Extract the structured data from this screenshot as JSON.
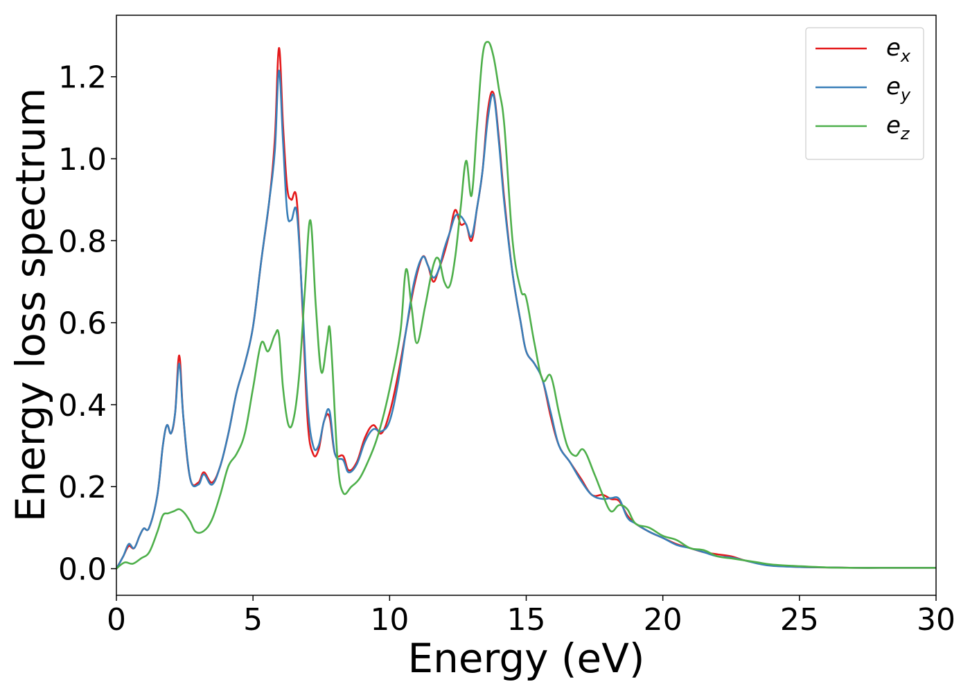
{
  "chart_data": {
    "type": "line",
    "title": "",
    "xlabel": "Energy (eV)",
    "ylabel": "Energy loss spectrum",
    "xlim": [
      0,
      30
    ],
    "ylim": [
      -0.065,
      1.35
    ],
    "xticks": [
      0,
      5,
      10,
      15,
      20,
      25,
      30
    ],
    "yticks": [
      0.0,
      0.2,
      0.4,
      0.6,
      0.8,
      1.0,
      1.2
    ],
    "xtick_labels": [
      "0",
      "5",
      "10",
      "15",
      "20",
      "25",
      "30"
    ],
    "ytick_labels": [
      "0.0",
      "0.2",
      "0.4",
      "0.6",
      "0.8",
      "1.0",
      "1.2"
    ],
    "grid": false,
    "legend_position": "top-right",
    "series": [
      {
        "name": "e_x",
        "label_main": "e",
        "label_sub": "x",
        "color": "#e41a1c",
        "x": [
          0,
          0.25,
          0.45,
          0.65,
          0.85,
          1.0,
          1.2,
          1.5,
          1.7,
          1.85,
          2.0,
          2.15,
          2.3,
          2.45,
          2.7,
          3.0,
          3.2,
          3.5,
          3.8,
          4.1,
          4.4,
          4.7,
          5.0,
          5.3,
          5.6,
          5.8,
          5.95,
          6.1,
          6.25,
          6.4,
          6.6,
          6.8,
          7.0,
          7.2,
          7.4,
          7.6,
          7.8,
          8.0,
          8.3,
          8.5,
          8.8,
          9.1,
          9.4,
          9.7,
          10.0,
          10.3,
          10.6,
          10.9,
          11.2,
          11.4,
          11.6,
          11.8,
          12.0,
          12.2,
          12.4,
          12.6,
          12.8,
          13.0,
          13.2,
          13.4,
          13.6,
          13.8,
          14.0,
          14.2,
          14.5,
          14.8,
          15.0,
          15.3,
          15.6,
          15.9,
          16.2,
          16.6,
          17.0,
          17.4,
          17.8,
          18.1,
          18.4,
          18.7,
          19.0,
          19.5,
          20.0,
          20.5,
          21.0,
          21.5,
          22.0,
          22.5,
          23.0,
          23.5,
          24.0,
          25.0,
          26.0,
          27.0,
          28.0,
          29.0,
          30.0
        ],
        "values": [
          0.0,
          0.03,
          0.055,
          0.05,
          0.08,
          0.098,
          0.1,
          0.18,
          0.3,
          0.35,
          0.33,
          0.38,
          0.52,
          0.37,
          0.22,
          0.21,
          0.235,
          0.21,
          0.25,
          0.33,
          0.43,
          0.5,
          0.59,
          0.75,
          0.9,
          1.05,
          1.27,
          1.08,
          0.93,
          0.9,
          0.9,
          0.65,
          0.36,
          0.28,
          0.29,
          0.36,
          0.37,
          0.28,
          0.275,
          0.24,
          0.26,
          0.32,
          0.35,
          0.33,
          0.38,
          0.47,
          0.58,
          0.69,
          0.76,
          0.74,
          0.7,
          0.73,
          0.77,
          0.82,
          0.875,
          0.84,
          0.84,
          0.8,
          0.88,
          0.97,
          1.12,
          1.16,
          1.05,
          0.9,
          0.72,
          0.6,
          0.53,
          0.5,
          0.46,
          0.37,
          0.3,
          0.26,
          0.22,
          0.18,
          0.18,
          0.17,
          0.165,
          0.13,
          0.11,
          0.09,
          0.075,
          0.06,
          0.05,
          0.04,
          0.035,
          0.03,
          0.02,
          0.013,
          0.008,
          0.004,
          0.003,
          0.002,
          0.002,
          0.002,
          0.002
        ]
      },
      {
        "name": "e_y",
        "label_main": "e",
        "label_sub": "y",
        "color": "#377eb8",
        "x": [
          0,
          0.25,
          0.45,
          0.65,
          0.85,
          1.0,
          1.2,
          1.5,
          1.7,
          1.85,
          2.0,
          2.15,
          2.3,
          2.45,
          2.7,
          3.0,
          3.2,
          3.5,
          3.8,
          4.1,
          4.4,
          4.7,
          5.0,
          5.3,
          5.6,
          5.8,
          5.95,
          6.1,
          6.25,
          6.4,
          6.6,
          6.8,
          7.0,
          7.2,
          7.4,
          7.6,
          7.8,
          8.0,
          8.3,
          8.5,
          8.8,
          9.1,
          9.4,
          9.7,
          10.0,
          10.3,
          10.6,
          10.9,
          11.2,
          11.4,
          11.6,
          11.8,
          12.0,
          12.2,
          12.4,
          12.6,
          12.8,
          13.0,
          13.2,
          13.4,
          13.6,
          13.8,
          14.0,
          14.2,
          14.5,
          14.8,
          15.0,
          15.3,
          15.6,
          15.9,
          16.2,
          16.6,
          17.0,
          17.4,
          17.8,
          18.1,
          18.4,
          18.7,
          19.0,
          19.5,
          20.0,
          20.5,
          21.0,
          21.5,
          22.0,
          22.5,
          23.0,
          23.5,
          24.0,
          25.0,
          26.0,
          27.0,
          28.0,
          29.0,
          30.0
        ],
        "values": [
          0.0,
          0.03,
          0.06,
          0.05,
          0.08,
          0.098,
          0.1,
          0.18,
          0.3,
          0.35,
          0.33,
          0.38,
          0.5,
          0.37,
          0.22,
          0.205,
          0.23,
          0.205,
          0.25,
          0.33,
          0.43,
          0.5,
          0.59,
          0.75,
          0.9,
          1.02,
          1.215,
          1.04,
          0.87,
          0.85,
          0.87,
          0.66,
          0.4,
          0.3,
          0.3,
          0.36,
          0.385,
          0.28,
          0.265,
          0.235,
          0.255,
          0.31,
          0.34,
          0.335,
          0.36,
          0.45,
          0.58,
          0.7,
          0.76,
          0.74,
          0.71,
          0.73,
          0.78,
          0.82,
          0.86,
          0.86,
          0.84,
          0.81,
          0.88,
          0.97,
          1.1,
          1.155,
          1.04,
          0.89,
          0.72,
          0.6,
          0.53,
          0.5,
          0.46,
          0.38,
          0.3,
          0.26,
          0.215,
          0.18,
          0.17,
          0.172,
          0.17,
          0.125,
          0.11,
          0.09,
          0.075,
          0.058,
          0.05,
          0.04,
          0.03,
          0.027,
          0.02,
          0.012,
          0.007,
          0.004,
          0.003,
          0.002,
          0.002,
          0.002,
          0.002
        ]
      },
      {
        "name": "e_z",
        "label_main": "e",
        "label_sub": "z",
        "color": "#4daf4a",
        "x": [
          0,
          0.3,
          0.6,
          0.9,
          1.2,
          1.5,
          1.7,
          1.9,
          2.1,
          2.3,
          2.5,
          2.7,
          2.9,
          3.2,
          3.5,
          3.8,
          4.1,
          4.4,
          4.7,
          5.0,
          5.3,
          5.55,
          5.8,
          5.95,
          6.1,
          6.3,
          6.5,
          6.7,
          6.9,
          7.1,
          7.3,
          7.5,
          7.7,
          7.8,
          7.9,
          8.1,
          8.3,
          8.6,
          8.9,
          9.2,
          9.5,
          9.8,
          10.1,
          10.4,
          10.6,
          10.8,
          11.0,
          11.3,
          11.6,
          11.8,
          12.0,
          12.2,
          12.4,
          12.6,
          12.8,
          13.0,
          13.2,
          13.4,
          13.6,
          13.8,
          14.0,
          14.2,
          14.5,
          14.8,
          15.0,
          15.3,
          15.6,
          15.9,
          16.2,
          16.5,
          16.8,
          17.1,
          17.5,
          17.8,
          18.1,
          18.4,
          18.7,
          19.0,
          19.5,
          20.0,
          20.5,
          21.0,
          21.5,
          22.0,
          22.5,
          23.0,
          23.5,
          24.0,
          25.0,
          26.0,
          27.0,
          28.0,
          29.0,
          30.0
        ],
        "values": [
          0.0,
          0.015,
          0.012,
          0.025,
          0.04,
          0.09,
          0.13,
          0.135,
          0.14,
          0.145,
          0.135,
          0.115,
          0.09,
          0.092,
          0.12,
          0.18,
          0.25,
          0.28,
          0.33,
          0.44,
          0.55,
          0.53,
          0.57,
          0.57,
          0.44,
          0.35,
          0.37,
          0.48,
          0.68,
          0.85,
          0.64,
          0.48,
          0.55,
          0.59,
          0.5,
          0.26,
          0.185,
          0.2,
          0.22,
          0.26,
          0.31,
          0.38,
          0.47,
          0.58,
          0.73,
          0.64,
          0.55,
          0.64,
          0.74,
          0.755,
          0.7,
          0.69,
          0.76,
          0.88,
          0.995,
          0.91,
          1.08,
          1.25,
          1.285,
          1.25,
          1.17,
          1.08,
          0.8,
          0.68,
          0.66,
          0.55,
          0.46,
          0.47,
          0.38,
          0.3,
          0.275,
          0.29,
          0.23,
          0.18,
          0.14,
          0.155,
          0.145,
          0.11,
          0.1,
          0.08,
          0.07,
          0.05,
          0.045,
          0.03,
          0.025,
          0.02,
          0.015,
          0.01,
          0.006,
          0.003,
          0.002,
          0.002,
          0.002,
          0.002
        ]
      }
    ]
  }
}
